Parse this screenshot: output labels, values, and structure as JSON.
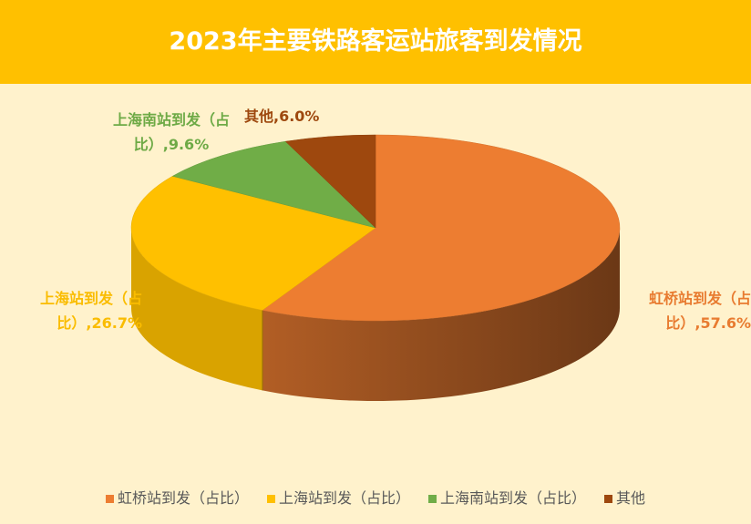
{
  "chart_data": {
    "type": "pie",
    "title": "2023年主要铁路客运站旅客到发情况",
    "categories": [
      "虹桥站到发（占比）",
      "上海站到发（占比）",
      "上海南站到发（占比）",
      "其他"
    ],
    "values": [
      57.6,
      26.7,
      9.6,
      6.0
    ],
    "value_labels": [
      "虹桥站到发（占比）,57.6%",
      "上海站到发（占比）,26.7%",
      "上海南站到发（占比）,9.6%",
      "其他,6.0%"
    ],
    "colors": [
      "#ED7D31",
      "#FFC000",
      "#70AD47",
      "#9E480E"
    ],
    "legend": "bottom"
  }
}
